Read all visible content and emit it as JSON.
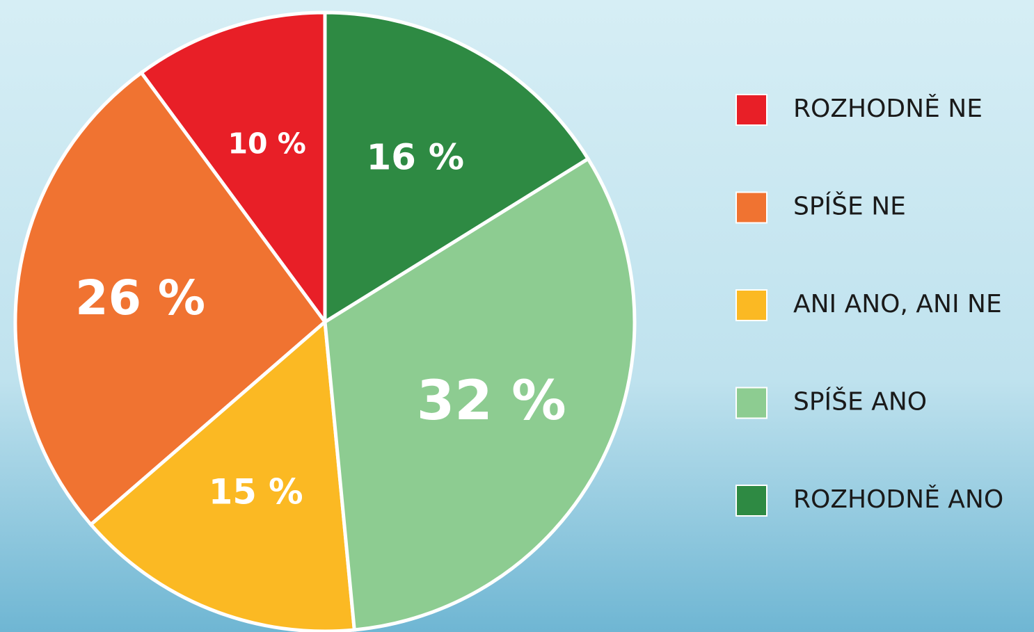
{
  "chart_data": {
    "type": "pie",
    "categories": [
      "ROZHODNĚ NE",
      "SPÍŠE NE",
      "ANI ANO, ANI NE",
      "SPÍŠE ANO",
      "ROZHODNĚ ANO"
    ],
    "values": [
      10,
      26,
      15,
      32,
      16
    ],
    "value_labels": [
      "10 %",
      "26 %",
      "15 %",
      "32 %",
      "16 %"
    ],
    "colors": [
      "#e81f27",
      "#f07331",
      "#fbb923",
      "#8dcc91",
      "#2e8a43"
    ],
    "legend": "right"
  }
}
